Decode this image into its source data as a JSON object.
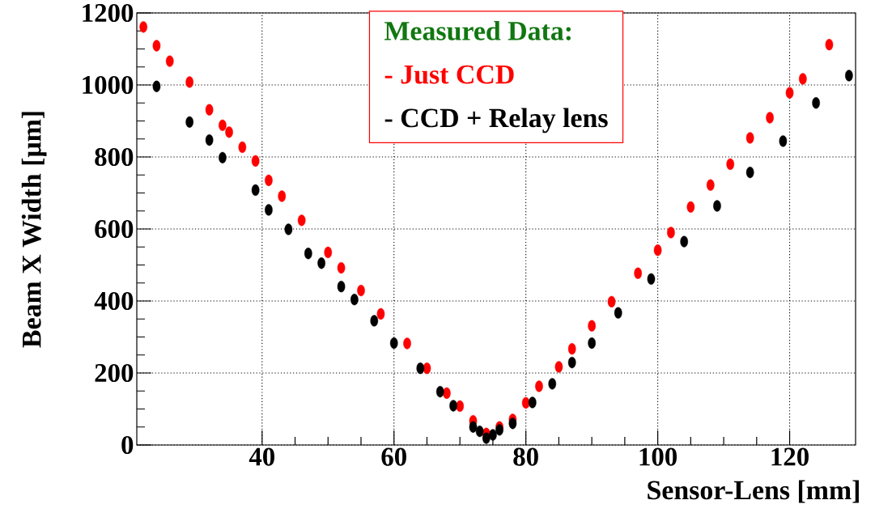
{
  "chart_data": {
    "type": "scatter",
    "xlabel": "Sensor-Lens [mm]",
    "ylabel": "Beam X Width [μm]",
    "legend_title": "Measured Data:",
    "xlim": [
      21,
      130
    ],
    "ylim": [
      0,
      1200
    ],
    "xticks": [
      40,
      60,
      80,
      100,
      120
    ],
    "yticks": [
      0,
      200,
      400,
      600,
      800,
      1000,
      1200
    ],
    "grid": true,
    "legend": "top",
    "marker": "circle",
    "series": [
      {
        "name": "- Just CCD",
        "color": "#ff0000",
        "x": [
          22,
          24,
          26,
          29,
          32,
          34,
          35,
          37,
          39,
          41,
          43,
          46,
          50,
          52,
          55,
          58,
          62,
          65,
          68,
          70,
          72,
          74,
          76,
          78,
          80,
          82,
          85,
          87,
          90,
          93,
          97,
          100,
          102,
          105,
          108,
          111,
          114,
          117,
          120,
          122,
          126
        ],
        "values": [
          1161,
          1109,
          1066,
          1008,
          931,
          888,
          869,
          827,
          789,
          735,
          691,
          624,
          535,
          492,
          429,
          364,
          282,
          213,
          144,
          108,
          67,
          32,
          50,
          71,
          117,
          163,
          217,
          267,
          331,
          398,
          477,
          541,
          590,
          661,
          722,
          780,
          853,
          909,
          978,
          1017,
          1112
        ]
      },
      {
        "name": "- CCD + Relay lens",
        "color": "#000000",
        "x": [
          24,
          29,
          32,
          34,
          39,
          41,
          44,
          47,
          49,
          52,
          54,
          57,
          60,
          64,
          67,
          69,
          72,
          73,
          74,
          75,
          76,
          78,
          81,
          84,
          87,
          90,
          94,
          99,
          104,
          109,
          114,
          119,
          124,
          129
        ],
        "values": [
          996,
          897,
          847,
          798,
          708,
          653,
          599,
          532,
          505,
          440,
          404,
          345,
          283,
          213,
          148,
          109,
          50,
          38,
          19,
          28,
          42,
          60,
          118,
          170,
          229,
          283,
          367,
          461,
          565,
          664,
          757,
          844,
          950,
          1026
        ]
      }
    ]
  }
}
